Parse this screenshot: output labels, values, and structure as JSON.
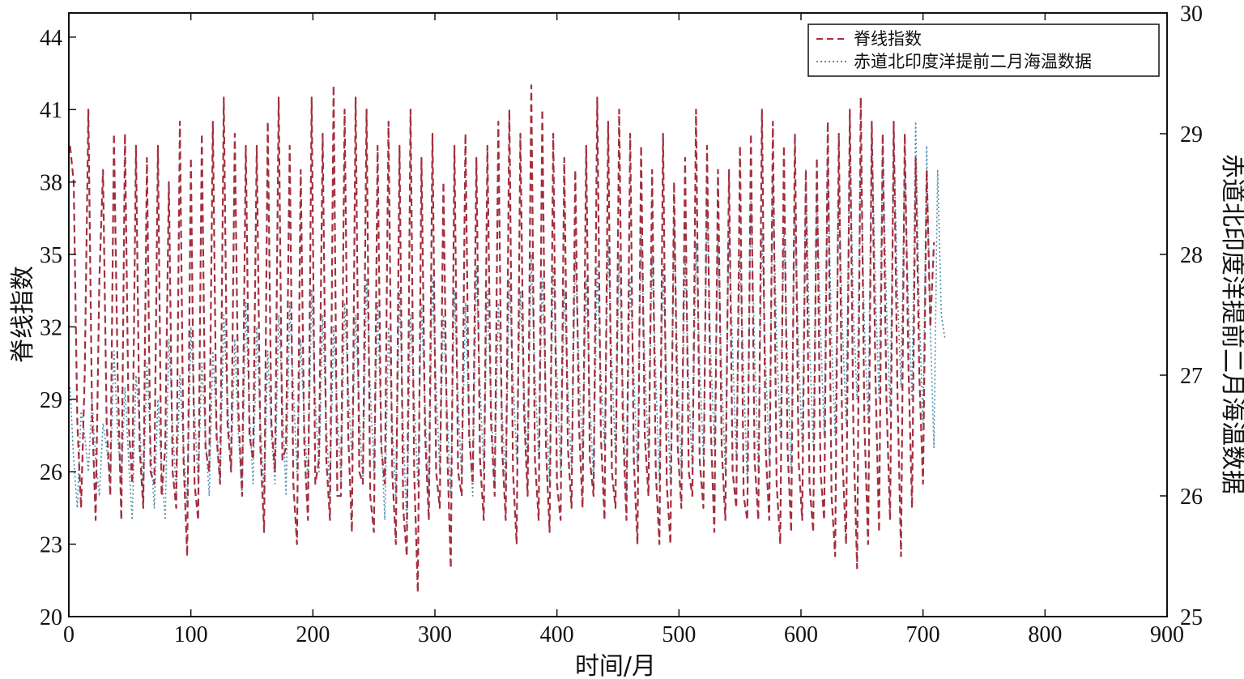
{
  "chart_data": {
    "type": "line",
    "title": "",
    "xlabel": "时间/月",
    "ylabel": "脊线指数",
    "y2label": "赤道北印度洋提前二月海温数据",
    "xlim": [
      0,
      900
    ],
    "ylim": [
      20,
      45
    ],
    "y2lim": [
      25,
      30
    ],
    "xticks": [
      "0",
      "100",
      "200",
      "300",
      "400",
      "500",
      "600",
      "700",
      "800",
      "900"
    ],
    "yticks": [
      "20",
      "23",
      "26",
      "29",
      "32",
      "35",
      "38",
      "41",
      "44"
    ],
    "y2ticks": [
      "25",
      "26",
      "27",
      "28",
      "29",
      "30"
    ],
    "grid": false,
    "legend_position": "top-right",
    "series": [
      {
        "name": "脊线指数",
        "axis": "left",
        "color": "#a3303f",
        "style": "dashed",
        "x_start": 1,
        "x_step": 3,
        "values": [
          39.5,
          38.0,
          28.0,
          24.5,
          30.0,
          41.0,
          28.5,
          24.0,
          34.0,
          38.5,
          28.0,
          25.0,
          40.0,
          30.0,
          24.0,
          40.0,
          28.0,
          25.5,
          39.5,
          27.0,
          24.5,
          39.0,
          26.0,
          25.5,
          39.5,
          25.0,
          27.0,
          38.0,
          26.0,
          24.5,
          40.5,
          26.5,
          22.5,
          39.0,
          25.5,
          24.0,
          40.0,
          27.0,
          26.0,
          40.5,
          27.5,
          25.5,
          41.5,
          28.0,
          26.0,
          40.0,
          28.5,
          25.0,
          39.5,
          27.5,
          26.5,
          39.5,
          27.0,
          23.5,
          40.5,
          28.0,
          26.0,
          41.5,
          26.5,
          27.0,
          39.5,
          25.5,
          23.0,
          38.5,
          27.0,
          24.0,
          41.5,
          25.5,
          26.5,
          40.0,
          26.5,
          24.0,
          42.0,
          25.0,
          25.0,
          41.0,
          27.5,
          23.5,
          41.5,
          26.0,
          25.5,
          41.0,
          25.0,
          23.5,
          39.5,
          27.0,
          25.5,
          40.5,
          26.0,
          23.0,
          39.5,
          24.5,
          22.5,
          41.0,
          26.0,
          21.0,
          39.0,
          27.5,
          24.0,
          40.0,
          26.0,
          24.5,
          38.0,
          27.0,
          22.0,
          39.5,
          26.0,
          25.0,
          40.0,
          27.5,
          25.5,
          39.0,
          26.5,
          24.0,
          39.5,
          28.0,
          25.0,
          40.5,
          27.0,
          24.0,
          41.0,
          26.0,
          23.0,
          40.0,
          28.5,
          25.0,
          42.0,
          26.5,
          24.0,
          41.0,
          27.0,
          23.5,
          40.0,
          25.5,
          24.0,
          39.0,
          27.0,
          24.5,
          38.5,
          28.0,
          24.5,
          39.5,
          26.5,
          25.0,
          41.5,
          27.5,
          24.0,
          40.5,
          26.0,
          24.5,
          41.0,
          28.0,
          24.0,
          40.0,
          26.5,
          23.0,
          39.5,
          27.5,
          25.0,
          38.5,
          26.0,
          23.0,
          40.0,
          25.5,
          23.0,
          38.0,
          27.0,
          24.5,
          39.0,
          26.0,
          25.0,
          41.0,
          26.5,
          24.5,
          39.5,
          28.0,
          23.5,
          38.5,
          27.0,
          24.0,
          38.5,
          26.0,
          24.5,
          39.5,
          25.0,
          24.0,
          40.0,
          26.5,
          24.0,
          41.0,
          27.0,
          24.0,
          40.5,
          25.5,
          23.0,
          39.5,
          27.0,
          23.5,
          40.0,
          26.5,
          24.0,
          38.5,
          25.5,
          23.5,
          39.0,
          26.0,
          24.0,
          40.5,
          25.0,
          22.5,
          40.0,
          26.5,
          23.0,
          41.0,
          27.5,
          22.0,
          41.5,
          28.0,
          23.0,
          40.5,
          30.0,
          23.5,
          40.0,
          29.0,
          24.0,
          40.5,
          29.5,
          22.5,
          40.0,
          30.5,
          24.5,
          39.0,
          30.0,
          25.5,
          38.5,
          32.0,
          35.5
        ]
      },
      {
        "name": "赤道北印度洋提前二月海温数据",
        "axis": "right",
        "color": "#4f8fa8",
        "style": "dotted",
        "x_start": 1,
        "x_step": 3,
        "values": [
          26.9,
          26.3,
          25.9,
          26.7,
          26.5,
          26.2,
          26.8,
          26.3,
          26.0,
          26.6,
          26.4,
          26.1,
          27.2,
          26.5,
          26.1,
          26.9,
          26.3,
          25.8,
          27.0,
          26.6,
          26.0,
          27.1,
          26.4,
          25.9,
          26.8,
          26.2,
          25.8,
          27.3,
          26.6,
          26.0,
          27.0,
          26.4,
          25.9,
          27.4,
          26.7,
          26.1,
          27.1,
          26.5,
          26.0,
          27.2,
          26.6,
          26.1,
          27.5,
          26.8,
          26.2,
          27.3,
          26.5,
          26.0,
          27.6,
          26.7,
          26.1,
          27.4,
          26.6,
          26.0,
          27.2,
          26.5,
          26.1,
          27.5,
          26.8,
          26.0,
          27.6,
          26.9,
          26.2,
          27.3,
          26.6,
          26.1,
          27.7,
          26.8,
          26.2,
          27.5,
          26.6,
          26.0,
          27.4,
          26.7,
          26.1,
          27.6,
          26.9,
          26.3,
          27.5,
          26.7,
          26.1,
          27.8,
          26.9,
          26.2,
          27.6,
          26.5,
          25.8,
          27.4,
          26.6,
          26.0,
          27.7,
          26.6,
          25.7,
          27.5,
          26.8,
          26.1,
          27.6,
          26.7,
          26.0,
          27.8,
          26.9,
          26.2,
          27.5,
          26.7,
          26.0,
          27.7,
          26.8,
          26.1,
          27.6,
          26.6,
          26.0,
          27.9,
          26.9,
          26.2,
          27.7,
          26.8,
          26.1,
          27.6,
          26.7,
          26.1,
          27.8,
          27.0,
          26.3,
          27.7,
          26.9,
          26.2,
          28.0,
          27.0,
          26.3,
          27.8,
          26.8,
          26.1,
          27.9,
          27.0,
          26.2,
          27.7,
          26.9,
          26.2,
          28.0,
          27.1,
          26.3,
          27.8,
          26.8,
          26.1,
          27.9,
          27.0,
          26.4,
          28.1,
          27.1,
          26.3,
          28.0,
          26.9,
          26.0,
          27.8,
          27.0,
          26.2,
          28.2,
          27.1,
          26.3,
          28.0,
          27.0,
          26.1,
          27.9,
          26.9,
          26.1,
          28.3,
          27.0,
          26.2,
          28.0,
          26.9,
          26.2,
          28.1,
          27.1,
          26.3,
          28.4,
          27.2,
          26.4,
          28.1,
          27.0,
          26.2,
          28.3,
          27.2,
          26.3,
          28.0,
          27.0,
          26.1,
          28.5,
          27.2,
          26.2,
          28.2,
          27.1,
          26.3,
          28.6,
          27.3,
          26.5,
          28.2,
          27.1,
          26.2,
          28.4,
          27.2,
          26.4,
          28.7,
          27.3,
          26.4,
          28.5,
          27.4,
          26.5,
          28.8,
          27.3,
          26.5,
          28.6,
          27.4,
          26.6,
          29.0,
          27.5,
          26.8,
          28.8,
          27.4,
          26.6,
          29.1,
          27.7,
          26.8,
          28.9,
          27.6,
          26.7,
          29.0,
          27.7,
          26.9,
          28.8,
          27.6,
          26.8,
          29.1,
          27.5,
          26.6,
          28.9,
          27.4,
          26.4,
          28.7,
          27.5,
          27.3
        ]
      }
    ]
  }
}
